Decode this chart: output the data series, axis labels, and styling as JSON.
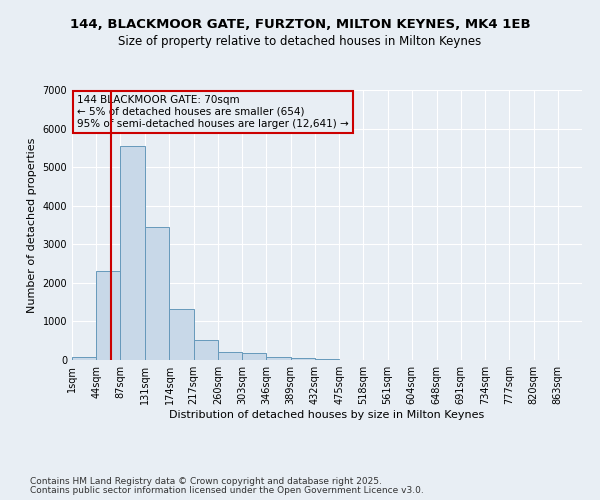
{
  "title_line1": "144, BLACKMOOR GATE, FURZTON, MILTON KEYNES, MK4 1EB",
  "title_line2": "Size of property relative to detached houses in Milton Keynes",
  "xlabel": "Distribution of detached houses by size in Milton Keynes",
  "ylabel": "Number of detached properties",
  "bin_edges": [
    1,
    44,
    87,
    131,
    174,
    217,
    260,
    303,
    346,
    389,
    432,
    475,
    518,
    561,
    604,
    648,
    691,
    734,
    777,
    820,
    863
  ],
  "bar_heights": [
    75,
    2300,
    5550,
    3450,
    1320,
    520,
    210,
    170,
    85,
    50,
    30,
    5,
    0,
    0,
    0,
    0,
    0,
    0,
    0,
    0
  ],
  "bar_color": "#c8d8e8",
  "bar_edge_color": "#6699bb",
  "property_size": 70,
  "vline_color": "#cc0000",
  "annotation_line1": "144 BLACKMOOR GATE: 70sqm",
  "annotation_line2": "← 5% of detached houses are smaller (654)",
  "annotation_line3": "95% of semi-detached houses are larger (12,641) →",
  "annotation_box_color": "#cc0000",
  "annotation_text_color": "#000000",
  "ylim": [
    0,
    7000
  ],
  "yticks": [
    0,
    1000,
    2000,
    3000,
    4000,
    5000,
    6000,
    7000
  ],
  "bg_color": "#e8eef4",
  "grid_color": "#ffffff",
  "footer_line1": "Contains HM Land Registry data © Crown copyright and database right 2025.",
  "footer_line2": "Contains public sector information licensed under the Open Government Licence v3.0.",
  "title_fontsize": 9.5,
  "subtitle_fontsize": 8.5,
  "axis_label_fontsize": 8,
  "tick_fontsize": 7,
  "annotation_fontsize": 7.5,
  "footer_fontsize": 6.5
}
